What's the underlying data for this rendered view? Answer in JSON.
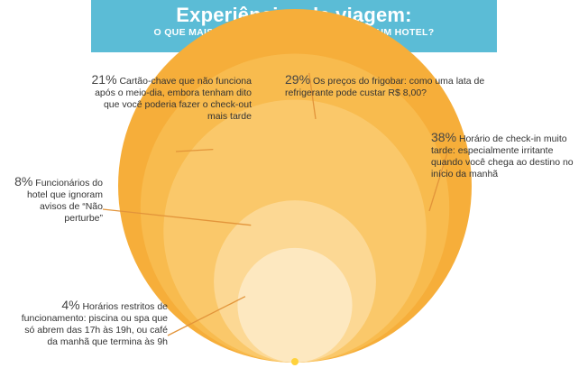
{
  "header": {
    "title": "Experiências de viagem:",
    "subtitle": "O QUE MAIS TE IRRITA AO SE HOSPEDAR EM UM HOTEL?"
  },
  "chart_data": {
    "type": "bubble",
    "title": "Experiências de viagem:",
    "subtitle": "O QUE MAIS TE IRRITA AO SE HOSPEDAR EM UM HOTEL?",
    "unit": "%",
    "items": [
      {
        "percent": "38%",
        "value": 38,
        "text": "Horário de check-in muito tarde: especialmente irritante quando você chega ao destino no início da manhã",
        "color": "#f6ae3a"
      },
      {
        "percent": "29%",
        "value": 29,
        "text": "Os preços do frigobar: como uma lata de refrigerante pode custar R$ 8,00?",
        "color": "#f8bb4e"
      },
      {
        "percent": "21%",
        "value": 21,
        "text": "Cartão-chave que não funciona após o meio-dia, embora tenham dito que você poderia fazer o check-out mais tarde",
        "color": "#fac86a"
      },
      {
        "percent": "8%",
        "value": 8,
        "text": "Funcionários do hotel que ignoram avisos de “Não perturbe”",
        "color": "#fcd894"
      },
      {
        "percent": "4%",
        "value": 4,
        "text": "Horários restritos de funcionamento: piscina ou spa que só abrem das 17h às 19h, ou café da manhã que termina às 9h",
        "color": "#fde8c0"
      }
    ],
    "colors": {
      "leader_line": "#e2943a",
      "center_dot": "#ffd23c"
    }
  }
}
